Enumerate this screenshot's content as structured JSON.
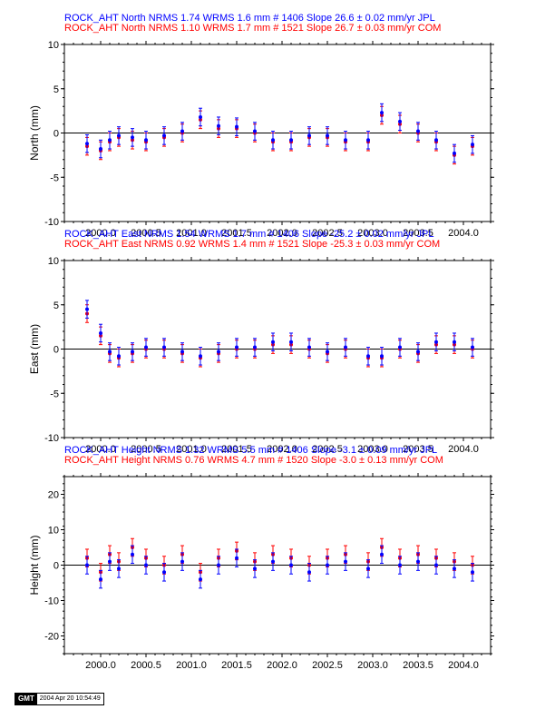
{
  "chart_data": [
    {
      "type": "scatter",
      "title_lines": [
        {
          "text": "ROCK_AHT North NRMS 1.74 WRMS  1.6 mm # 1406 Slope   26.6 ±  0.02 mm/yr JPL",
          "color": "#0000ff"
        },
        {
          "text": "ROCK_AHT North NRMS 1.10 WRMS  1.7 mm # 1521 Slope   26.7 ±  0.03 mm/yr COM",
          "color": "#ff0000"
        }
      ],
      "xlabel": "",
      "ylabel": "North (mm)",
      "xlim": [
        1999.6,
        2004.3
      ],
      "ylim": [
        -10,
        10
      ],
      "xticks": [
        "2000.0",
        "2000.5",
        "2001.0",
        "2001.5",
        "2002.0",
        "2002.5",
        "2003.0",
        "2003.5",
        "2004.0"
      ],
      "yticks": [
        "-10",
        "-5",
        "0",
        "5",
        "10"
      ],
      "series": [
        {
          "color": "#ff0000",
          "values": [
            [
              1999.85,
              -1.5
            ],
            [
              2000.0,
              -2.0
            ],
            [
              2000.1,
              -1.0
            ],
            [
              2000.2,
              -0.5
            ],
            [
              2000.35,
              -0.8
            ],
            [
              2000.5,
              -1.0
            ],
            [
              2000.7,
              -0.5
            ],
            [
              2000.9,
              0.0
            ],
            [
              2001.1,
              1.5
            ],
            [
              2001.3,
              0.5
            ],
            [
              2001.5,
              0.5
            ],
            [
              2001.7,
              0.0
            ],
            [
              2001.9,
              -1.0
            ],
            [
              2002.1,
              -1.0
            ],
            [
              2002.3,
              -0.5
            ],
            [
              2002.5,
              -0.5
            ],
            [
              2002.7,
              -1.0
            ],
            [
              2002.95,
              -1.0
            ],
            [
              2003.1,
              2.0
            ],
            [
              2003.3,
              1.0
            ],
            [
              2003.5,
              0.0
            ],
            [
              2003.7,
              -1.0
            ],
            [
              2003.9,
              -2.5
            ],
            [
              2004.1,
              -1.5
            ]
          ]
        },
        {
          "color": "#0000ff",
          "values": [
            [
              1999.85,
              -1.2
            ],
            [
              2000.0,
              -1.8
            ],
            [
              2000.1,
              -0.8
            ],
            [
              2000.2,
              -0.3
            ],
            [
              2000.35,
              -0.5
            ],
            [
              2000.5,
              -0.8
            ],
            [
              2000.7,
              -0.3
            ],
            [
              2000.9,
              0.2
            ],
            [
              2001.1,
              1.8
            ],
            [
              2001.3,
              0.8
            ],
            [
              2001.5,
              0.7
            ],
            [
              2001.7,
              0.2
            ],
            [
              2001.9,
              -0.8
            ],
            [
              2002.1,
              -0.8
            ],
            [
              2002.3,
              -0.3
            ],
            [
              2002.5,
              -0.3
            ],
            [
              2002.7,
              -0.8
            ],
            [
              2002.95,
              -0.8
            ],
            [
              2003.1,
              2.3
            ],
            [
              2003.3,
              1.3
            ],
            [
              2003.5,
              0.2
            ],
            [
              2003.7,
              -0.8
            ],
            [
              2003.9,
              -2.3
            ],
            [
              2004.1,
              -1.3
            ]
          ]
        }
      ]
    },
    {
      "type": "scatter",
      "title_lines": [
        {
          "text": "ROCK_AHT East NRMS 1.54 WRMS  1.7 mm # 1406 Slope  -25.2 ±  0.02 mm/yr JPL",
          "color": "#0000ff"
        },
        {
          "text": "ROCK_AHT East NRMS 0.92 WRMS  1.4 mm # 1521 Slope  -25.3 ±  0.03 mm/yr COM",
          "color": "#ff0000"
        }
      ],
      "xlabel": "",
      "ylabel": "East (mm)",
      "xlim": [
        1999.6,
        2004.3
      ],
      "ylim": [
        -10,
        10
      ],
      "xticks": [
        "2000.0",
        "2000.5",
        "2001.0",
        "2001.5",
        "2002.0",
        "2002.5",
        "2003.0",
        "2003.5",
        "2004.0"
      ],
      "yticks": [
        "-10",
        "-5",
        "0",
        "5",
        "10"
      ],
      "series": [
        {
          "color": "#ff0000",
          "values": [
            [
              1999.85,
              4.0
            ],
            [
              2000.0,
              1.5
            ],
            [
              2000.1,
              -0.5
            ],
            [
              2000.2,
              -1.0
            ],
            [
              2000.35,
              -0.5
            ],
            [
              2000.5,
              0.0
            ],
            [
              2000.7,
              0.0
            ],
            [
              2000.9,
              -0.5
            ],
            [
              2001.1,
              -1.0
            ],
            [
              2001.3,
              -0.5
            ],
            [
              2001.5,
              0.0
            ],
            [
              2001.7,
              0.0
            ],
            [
              2001.9,
              0.5
            ],
            [
              2002.1,
              0.5
            ],
            [
              2002.3,
              0.0
            ],
            [
              2002.5,
              -0.5
            ],
            [
              2002.7,
              0.0
            ],
            [
              2002.95,
              -1.0
            ],
            [
              2003.1,
              -1.0
            ],
            [
              2003.3,
              0.0
            ],
            [
              2003.5,
              -0.5
            ],
            [
              2003.7,
              0.5
            ],
            [
              2003.9,
              0.5
            ],
            [
              2004.1,
              0.0
            ]
          ]
        },
        {
          "color": "#0000ff",
          "values": [
            [
              1999.85,
              4.5
            ],
            [
              2000.0,
              1.8
            ],
            [
              2000.1,
              -0.3
            ],
            [
              2000.2,
              -0.8
            ],
            [
              2000.35,
              -0.3
            ],
            [
              2000.5,
              0.2
            ],
            [
              2000.7,
              0.2
            ],
            [
              2000.9,
              -0.3
            ],
            [
              2001.1,
              -0.8
            ],
            [
              2001.3,
              -0.3
            ],
            [
              2001.5,
              0.2
            ],
            [
              2001.7,
              0.2
            ],
            [
              2001.9,
              0.8
            ],
            [
              2002.1,
              0.8
            ],
            [
              2002.3,
              0.2
            ],
            [
              2002.5,
              -0.3
            ],
            [
              2002.7,
              0.2
            ],
            [
              2002.95,
              -0.8
            ],
            [
              2003.1,
              -0.8
            ],
            [
              2003.3,
              0.2
            ],
            [
              2003.5,
              -0.3
            ],
            [
              2003.7,
              0.8
            ],
            [
              2003.9,
              0.8
            ],
            [
              2004.1,
              0.2
            ]
          ]
        }
      ]
    },
    {
      "type": "scatter",
      "title_lines": [
        {
          "text": "ROCK_AHT Height NRMS 1.32 WRMS  5.5 mm # 1406 Slope   -3.1 ±  0.09 mm/yr JPL",
          "color": "#0000ff"
        },
        {
          "text": "ROCK_AHT Height NRMS 0.76 WRMS  4.7 mm # 1520 Slope   -3.0 ±  0.13 mm/yr COM",
          "color": "#ff0000"
        }
      ],
      "xlabel": "",
      "ylabel": "Height (mm)",
      "xlim": [
        1999.6,
        2004.3
      ],
      "ylim": [
        -25,
        25
      ],
      "xticks": [
        "2000.0",
        "2000.5",
        "2001.0",
        "2001.5",
        "2002.0",
        "2002.5",
        "2003.0",
        "2003.5",
        "2004.0"
      ],
      "yticks": [
        "-20",
        "-10",
        "0",
        "10",
        "20"
      ],
      "series": [
        {
          "color": "#ff0000",
          "values": [
            [
              1999.85,
              2.0
            ],
            [
              2000.0,
              -2.0
            ],
            [
              2000.1,
              3.0
            ],
            [
              2000.2,
              1.0
            ],
            [
              2000.35,
              5.0
            ],
            [
              2000.5,
              2.0
            ],
            [
              2000.7,
              0.0
            ],
            [
              2000.9,
              3.0
            ],
            [
              2001.1,
              -2.0
            ],
            [
              2001.3,
              2.0
            ],
            [
              2001.5,
              4.0
            ],
            [
              2001.7,
              1.0
            ],
            [
              2001.9,
              3.0
            ],
            [
              2002.1,
              2.0
            ],
            [
              2002.3,
              0.0
            ],
            [
              2002.5,
              2.0
            ],
            [
              2002.7,
              3.0
            ],
            [
              2002.95,
              1.0
            ],
            [
              2003.1,
              5.0
            ],
            [
              2003.3,
              2.0
            ],
            [
              2003.5,
              3.0
            ],
            [
              2003.7,
              2.0
            ],
            [
              2003.9,
              1.0
            ],
            [
              2004.1,
              0.0
            ]
          ]
        },
        {
          "color": "#0000ff",
          "values": [
            [
              1999.85,
              0.0
            ],
            [
              2000.0,
              -4.0
            ],
            [
              2000.1,
              1.0
            ],
            [
              2000.2,
              -1.0
            ],
            [
              2000.35,
              3.0
            ],
            [
              2000.5,
              0.0
            ],
            [
              2000.7,
              -2.0
            ],
            [
              2000.9,
              1.0
            ],
            [
              2001.1,
              -4.0
            ],
            [
              2001.3,
              0.0
            ],
            [
              2001.5,
              2.0
            ],
            [
              2001.7,
              -1.0
            ],
            [
              2001.9,
              1.0
            ],
            [
              2002.1,
              0.0
            ],
            [
              2002.3,
              -2.0
            ],
            [
              2002.5,
              0.0
            ],
            [
              2002.7,
              1.0
            ],
            [
              2002.95,
              -1.0
            ],
            [
              2003.1,
              3.0
            ],
            [
              2003.3,
              0.0
            ],
            [
              2003.5,
              1.0
            ],
            [
              2003.7,
              0.0
            ],
            [
              2003.9,
              -1.0
            ],
            [
              2004.1,
              -2.0
            ]
          ]
        }
      ]
    }
  ],
  "footer": {
    "logo": "GMT",
    "timestamp": "2004 Apr 20 10:54:49"
  }
}
